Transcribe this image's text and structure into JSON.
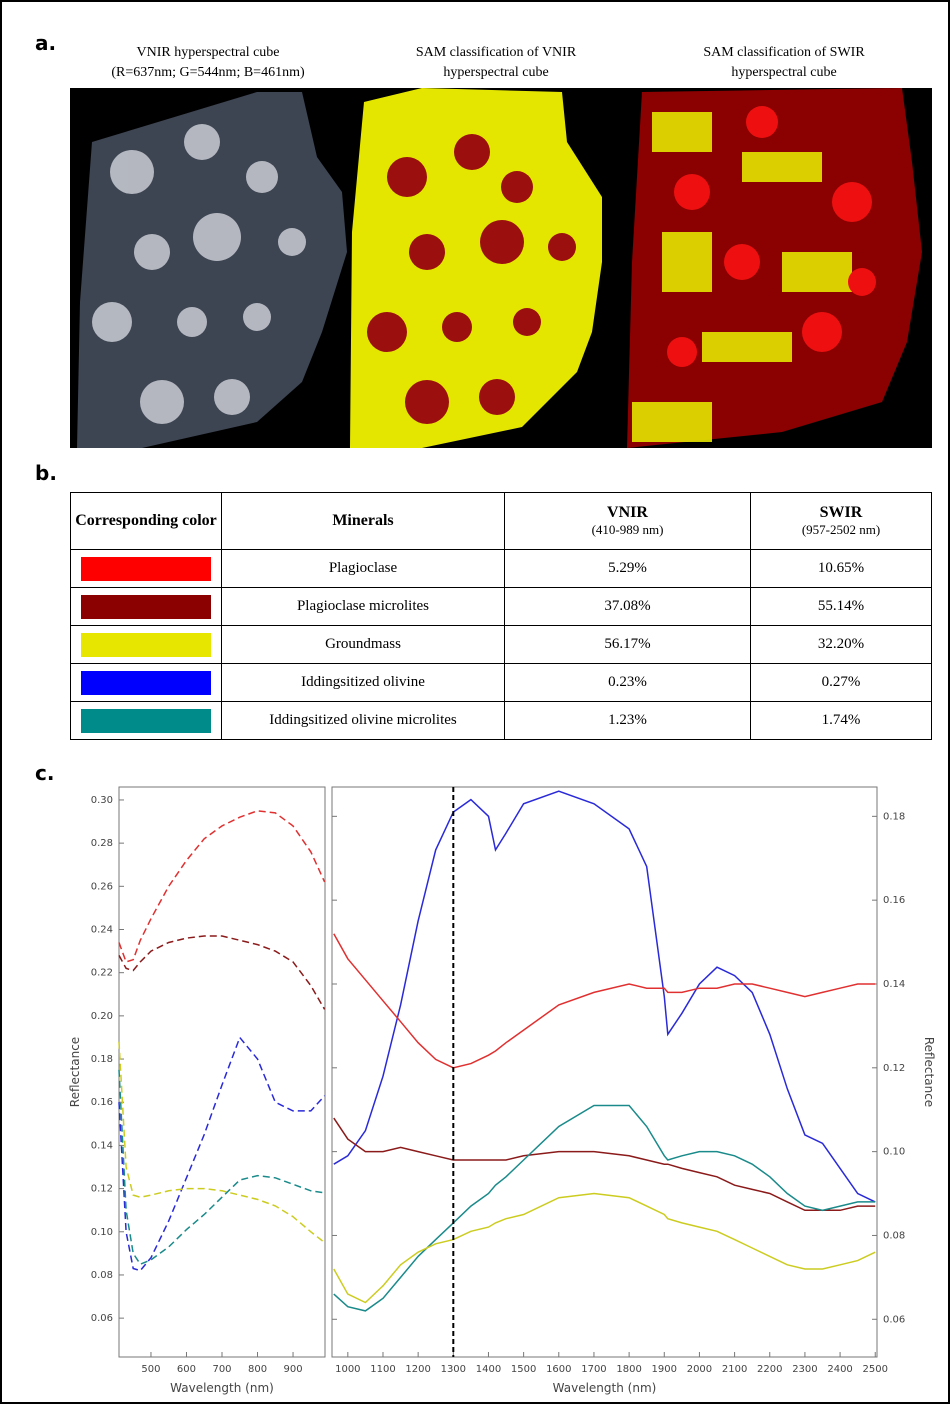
{
  "panel_a": {
    "label": "a.",
    "captions": [
      [
        "VNIR hyperspectral cube",
        "(R=637nm; G=544nm; B=461nm)"
      ],
      [
        "SAM classification of VNIR",
        "hyperspectral cube"
      ],
      [
        "SAM classification of SWIR",
        "hyperspectral cube"
      ]
    ]
  },
  "panel_b": {
    "label": "b.",
    "table": {
      "header": {
        "color": "Corresponding color",
        "minerals": "Minerals",
        "vnir": "VNIR",
        "vnir_range": "(410-989 nm)",
        "swir": "SWIR",
        "swir_range": "(957-2502 nm)"
      },
      "rows": [
        {
          "color": "#ff0000",
          "mineral": "Plagioclase",
          "vnir": "5.29%",
          "swir": "10.65%"
        },
        {
          "color": "#8b0000",
          "mineral": "Plagioclase microlites",
          "vnir": "37.08%",
          "swir": "55.14%"
        },
        {
          "color": "#e6e600",
          "mineral": "Groundmass",
          "vnir": "56.17%",
          "swir": "32.20%"
        },
        {
          "color": "#0000ff",
          "mineral": "Iddingsitized olivine",
          "vnir": "0.23%",
          "swir": "0.27%"
        },
        {
          "color": "#008b8b",
          "mineral": "Iddingsitized olivine microlites",
          "vnir": "1.23%",
          "swir": "1.74%"
        }
      ]
    }
  },
  "panel_c": {
    "label": "c."
  },
  "chart_data": [
    {
      "type": "line",
      "xlabel": "Wavelength (nm)",
      "ylabel": "Reflectance",
      "dashed": true,
      "yaxis": "left",
      "x": [
        410,
        430,
        450,
        470,
        500,
        550,
        600,
        650,
        700,
        750,
        800,
        850,
        900,
        950,
        989
      ],
      "xlim": [
        410,
        990
      ],
      "xticks": [
        500,
        600,
        700,
        800,
        900
      ],
      "ylim": [
        0.042,
        0.306
      ],
      "yticks": [
        0.06,
        0.08,
        {
          "value": 0.1,
          "label": "0.10"
        },
        0.12,
        0.14,
        0.16,
        0.18,
        {
          "value": 0.2,
          "label": "0.20"
        },
        0.22,
        0.24,
        0.26,
        0.28,
        {
          "value": 0.3,
          "label": "0.30"
        }
      ],
      "series": [
        {
          "color": "#e03030",
          "values": [
            0.234,
            0.225,
            0.226,
            0.235,
            0.245,
            0.26,
            0.272,
            0.282,
            0.288,
            0.292,
            0.295,
            0.294,
            0.288,
            0.276,
            0.262
          ]
        },
        {
          "color": "#8b1a1a",
          "values": [
            0.228,
            0.222,
            0.221,
            0.225,
            0.23,
            0.234,
            0.236,
            0.237,
            0.237,
            0.235,
            0.233,
            0.23,
            0.225,
            0.214,
            0.203
          ]
        },
        {
          "color": "#2a2ad8",
          "values": [
            0.16,
            0.1,
            0.083,
            0.082,
            0.088,
            0.105,
            0.125,
            0.145,
            0.168,
            0.19,
            0.18,
            0.16,
            0.156,
            0.156,
            0.163
          ]
        },
        {
          "color": "#cccc20",
          "values": [
            0.188,
            0.13,
            0.117,
            0.116,
            0.117,
            0.119,
            0.12,
            0.12,
            0.119,
            0.117,
            0.115,
            0.112,
            0.107,
            0.1,
            0.095
          ]
        },
        {
          "color": "#1a8a8a",
          "values": [
            0.175,
            0.11,
            0.09,
            0.085,
            0.087,
            0.093,
            0.101,
            0.108,
            0.116,
            0.124,
            0.126,
            0.125,
            0.122,
            0.119,
            0.118
          ]
        }
      ]
    },
    {
      "type": "line",
      "xlabel": "Wavelength (nm)",
      "ylabel": "Reflectance",
      "dashed": false,
      "yaxis": "right",
      "vline": 1300,
      "x": [
        960,
        1000,
        1050,
        1100,
        1150,
        1200,
        1250,
        1300,
        1350,
        1400,
        1420,
        1450,
        1500,
        1600,
        1700,
        1800,
        1850,
        1900,
        1910,
        1950,
        2000,
        2050,
        2100,
        2150,
        2200,
        2250,
        2300,
        2350,
        2400,
        2450,
        2500
      ],
      "xlim": [
        955,
        2505
      ],
      "xticks": [
        1000,
        1100,
        1200,
        1300,
        1400,
        1500,
        1600,
        1700,
        1800,
        1900,
        2000,
        2100,
        2200,
        2300,
        2400,
        2500
      ],
      "ylim": [
        0.051,
        0.187
      ],
      "yticks": [
        0.06,
        0.08,
        {
          "value": 0.1,
          "label": "0.10"
        },
        0.12,
        0.14,
        0.16,
        0.18
      ],
      "series": [
        {
          "color": "#2a2ad8",
          "values": [
            0.097,
            0.099,
            0.105,
            0.118,
            0.135,
            0.155,
            0.172,
            0.181,
            0.184,
            0.18,
            0.172,
            0.176,
            0.183,
            0.186,
            0.183,
            0.177,
            0.168,
            0.137,
            0.128,
            0.133,
            0.14,
            0.144,
            0.142,
            0.138,
            0.128,
            0.115,
            0.104,
            0.102,
            0.096,
            0.09,
            0.088
          ]
        },
        {
          "color": "#e03030",
          "values": [
            0.152,
            0.146,
            0.141,
            0.136,
            0.131,
            0.126,
            0.122,
            0.12,
            0.121,
            0.123,
            0.124,
            0.126,
            0.129,
            0.135,
            0.138,
            0.14,
            0.139,
            0.139,
            0.138,
            0.138,
            0.139,
            0.139,
            0.14,
            0.14,
            0.139,
            0.138,
            0.137,
            0.138,
            0.139,
            0.14,
            0.14
          ]
        },
        {
          "color": "#8b1a1a",
          "values": [
            0.108,
            0.103,
            0.1,
            0.1,
            0.101,
            0.1,
            0.099,
            0.098,
            0.098,
            0.098,
            0.098,
            0.098,
            0.099,
            0.1,
            0.1,
            0.099,
            0.098,
            0.097,
            0.097,
            0.096,
            0.095,
            0.094,
            0.092,
            0.091,
            0.09,
            0.088,
            0.086,
            0.086,
            0.086,
            0.087,
            0.087
          ]
        },
        {
          "color": "#1a8a8a",
          "values": [
            0.066,
            0.063,
            0.062,
            0.065,
            0.07,
            0.075,
            0.079,
            0.083,
            0.087,
            0.09,
            0.092,
            0.094,
            0.098,
            0.106,
            0.111,
            0.111,
            0.106,
            0.099,
            0.098,
            0.099,
            0.1,
            0.1,
            0.099,
            0.097,
            0.094,
            0.09,
            0.087,
            0.086,
            0.087,
            0.088,
            0.088
          ]
        },
        {
          "color": "#cccc20",
          "values": [
            0.072,
            0.066,
            0.064,
            0.068,
            0.073,
            0.076,
            0.078,
            0.079,
            0.081,
            0.082,
            0.083,
            0.084,
            0.085,
            0.089,
            0.09,
            0.089,
            0.087,
            0.085,
            0.084,
            0.083,
            0.082,
            0.081,
            0.079,
            0.077,
            0.075,
            0.073,
            0.072,
            0.072,
            0.073,
            0.074,
            0.076
          ]
        }
      ]
    }
  ]
}
